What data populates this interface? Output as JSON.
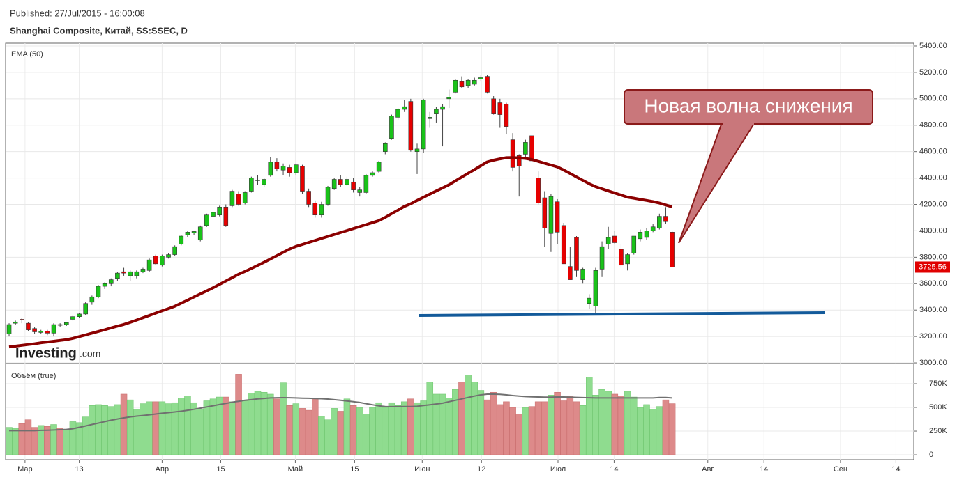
{
  "header": {
    "published": "Published: 27/Jul/2015 - 16:00:08",
    "symbol": "Shanghai Composite, Китай, SS:SSEC, D",
    "logo": [
      "Investing",
      ".com"
    ]
  },
  "chart_data": [
    {
      "type": "candlestick",
      "up_color": "#19c219",
      "down_color": "#e60000",
      "ylim": [
        2995,
        5421
      ],
      "yticks": [
        {
          "value": 3000,
          "label": "3000.00"
        },
        {
          "value": 3200,
          "label": "3200.00"
        },
        {
          "value": 3400,
          "label": "3400.00"
        },
        {
          "value": 3600,
          "label": "3600.00"
        },
        {
          "value": 3800,
          "label": "3800.00"
        },
        {
          "value": 4000,
          "label": "4000.00"
        },
        {
          "value": 4200,
          "label": "4200.00"
        },
        {
          "value": 4400,
          "label": "4400.00"
        },
        {
          "value": 4600,
          "label": "4600.00"
        },
        {
          "value": 4800,
          "label": "4800.00"
        },
        {
          "value": 5000,
          "label": "5000.00"
        },
        {
          "value": 5200,
          "label": "5200.00"
        },
        {
          "value": 5400,
          "label": "5400.00"
        }
      ],
      "grid": true,
      "last_price": 3725.56,
      "annotation": "Новая волна снижения",
      "open": [
        3220,
        3300,
        3330,
        3300,
        3260,
        3230,
        3240,
        3225,
        3290,
        3290,
        3330,
        3350,
        3370,
        3460,
        3500,
        3580,
        3600,
        3640,
        3690,
        3660,
        3660,
        3690,
        3700,
        3810,
        3740,
        3800,
        3820,
        3900,
        3970,
        3985,
        3930,
        4040,
        4110,
        4120,
        4180,
        4190,
        4280,
        4210,
        4300,
        4380,
        4350,
        4420,
        4520,
        4460,
        4480,
        4440,
        4490,
        4300,
        4210,
        4120,
        4200,
        4320,
        4390,
        4350,
        4370,
        4290,
        4290,
        4420,
        4450,
        4600,
        4700,
        4860,
        4920,
        4980,
        4600,
        4620,
        4850,
        4890,
        4920,
        5000,
        5050,
        5130,
        5100,
        5110,
        5150,
        5170,
        5000,
        4970,
        4960,
        4690,
        4570,
        4580,
        4720,
        4400,
        4250,
        3980,
        4220,
        4040,
        3730,
        3950,
        3630,
        3450,
        3430,
        3710,
        3900,
        3960,
        3860,
        3750,
        3830,
        3940,
        3950,
        4000,
        4020,
        4110,
        3990
      ],
      "high": [
        3300,
        3320,
        3340,
        3310,
        3270,
        3250,
        3250,
        3300,
        3300,
        3310,
        3360,
        3380,
        3460,
        3510,
        3590,
        3610,
        3640,
        3690,
        3720,
        3700,
        3700,
        3720,
        3790,
        3820,
        3820,
        3830,
        3890,
        3970,
        4000,
        4000,
        4040,
        4130,
        4150,
        4190,
        4200,
        4310,
        4300,
        4300,
        4410,
        4420,
        4400,
        4560,
        4550,
        4510,
        4500,
        4510,
        4500,
        4320,
        4230,
        4220,
        4340,
        4400,
        4420,
        4410,
        4400,
        4330,
        4430,
        4450,
        4530,
        4670,
        4880,
        4930,
        4990,
        5000,
        4660,
        5000,
        4900,
        4940,
        4960,
        5070,
        5150,
        5170,
        5150,
        5160,
        5178,
        5180,
        5020,
        5000,
        4970,
        4740,
        4580,
        4690,
        4730,
        4450,
        4300,
        4280,
        4240,
        4060,
        3880,
        3960,
        3720,
        3520,
        3720,
        3920,
        4030,
        4000,
        3900,
        3830,
        3960,
        4010,
        4020,
        4050,
        4130,
        4180,
        4000
      ],
      "low": [
        3200,
        3290,
        3300,
        3240,
        3220,
        3220,
        3210,
        3200,
        3270,
        3280,
        3320,
        3340,
        3360,
        3440,
        3490,
        3560,
        3580,
        3620,
        3660,
        3620,
        3640,
        3680,
        3690,
        3740,
        3730,
        3790,
        3810,
        3890,
        3950,
        3970,
        3920,
        4030,
        4100,
        4110,
        4030,
        4180,
        4190,
        4200,
        4290,
        4350,
        4330,
        4410,
        4450,
        4420,
        4410,
        4420,
        4280,
        4180,
        4100,
        4100,
        4190,
        4310,
        4330,
        4340,
        4290,
        4260,
        4280,
        4410,
        4440,
        4580,
        4690,
        4840,
        4900,
        4600,
        4430,
        4590,
        4780,
        4820,
        4640,
        4930,
        5040,
        5080,
        5080,
        5100,
        5130,
        5040,
        4880,
        4780,
        4730,
        4450,
        4260,
        4560,
        4500,
        4200,
        3880,
        3840,
        3900,
        3750,
        3630,
        3650,
        3600,
        3410,
        3370,
        3650,
        3860,
        3900,
        3720,
        3700,
        3820,
        3920,
        3930,
        3990,
        4010,
        4050,
        3725
      ],
      "close": [
        3290,
        3310,
        3325,
        3250,
        3235,
        3240,
        3225,
        3290,
        3285,
        3305,
        3350,
        3370,
        3450,
        3500,
        3580,
        3600,
        3630,
        3680,
        3680,
        3690,
        3690,
        3710,
        3780,
        3750,
        3810,
        3820,
        3880,
        3960,
        3990,
        3995,
        4030,
        4120,
        4140,
        4180,
        4040,
        4300,
        4200,
        4290,
        4400,
        4385,
        4390,
        4520,
        4470,
        4490,
        4440,
        4500,
        4300,
        4200,
        4120,
        4200,
        4330,
        4390,
        4350,
        4390,
        4310,
        4310,
        4420,
        4440,
        4520,
        4660,
        4870,
        4920,
        4940,
        4610,
        4620,
        4990,
        4860,
        4920,
        4940,
        5010,
        5140,
        5090,
        5140,
        5140,
        5160,
        5050,
        4890,
        4880,
        4790,
        4480,
        4490,
        4670,
        4530,
        4210,
        4020,
        4260,
        3990,
        3750,
        3630,
        3700,
        3710,
        3490,
        3700,
        3880,
        3950,
        3910,
        3740,
        3820,
        3960,
        3990,
        4000,
        4030,
        4110,
        4070,
        3725.56
      ],
      "series": [
        {
          "name": "EMA (50)",
          "color": "#8b0000",
          "values": [
            3121,
            3127,
            3133,
            3139,
            3145,
            3152,
            3158,
            3164,
            3170,
            3176,
            3186,
            3199,
            3212,
            3225,
            3238,
            3251,
            3265,
            3278,
            3291,
            3307,
            3324,
            3342,
            3359,
            3377,
            3394,
            3411,
            3429,
            3452,
            3475,
            3499,
            3522,
            3545,
            3569,
            3594,
            3620,
            3645,
            3671,
            3692,
            3715,
            3738,
            3762,
            3787,
            3812,
            3837,
            3862,
            3882,
            3897,
            3912,
            3927,
            3942,
            3957,
            3972,
            3987,
            4002,
            4017,
            4032,
            4047,
            4062,
            4077,
            4102,
            4130,
            4157,
            4185,
            4205,
            4230,
            4254,
            4278,
            4302,
            4325,
            4349,
            4378,
            4407,
            4436,
            4464,
            4493,
            4522,
            4535,
            4545,
            4554,
            4555,
            4552,
            4548,
            4540,
            4526,
            4512,
            4498,
            4484,
            4460,
            4434,
            4408,
            4382,
            4356,
            4334,
            4318,
            4302,
            4286,
            4271,
            4255,
            4247,
            4238,
            4230,
            4221,
            4210,
            4196,
            4182
          ]
        }
      ]
    },
    {
      "type": "bar",
      "title": "Объём (true)",
      "up_color": "#8fdc8f",
      "down_color": "#dd8a8a",
      "ma_color": "#707070",
      "ylim": [
        -51000,
        963000
      ],
      "yticks": [
        0,
        {
          "value": 250000,
          "label": "250K"
        },
        {
          "value": 500000,
          "label": "500K"
        },
        {
          "value": 750000,
          "label": "750K"
        }
      ],
      "xlim": [
        -0.55,
        141.9
      ],
      "xticks": [
        {
          "value": 2.5,
          "label": "Мар"
        },
        {
          "value": 11,
          "label": "13"
        },
        {
          "value": 24,
          "label": "Апр"
        },
        {
          "value": 33.2,
          "label": "15"
        },
        {
          "value": 44.9,
          "label": "Май"
        },
        {
          "value": 54.2,
          "label": "15"
        },
        {
          "value": 64.8,
          "label": "Июн"
        },
        {
          "value": 74.1,
          "label": "12"
        },
        {
          "value": 86.1,
          "label": "Июл"
        },
        {
          "value": 94.9,
          "label": "14"
        },
        {
          "value": 109.6,
          "label": "Авг"
        },
        {
          "value": 118.4,
          "label": "14"
        },
        {
          "value": 130.4,
          "label": "Сен"
        },
        {
          "value": 139.1,
          "label": "14"
        }
      ],
      "values": [
        290000,
        280000,
        330000,
        370000,
        290000,
        310000,
        300000,
        320000,
        280000,
        260000,
        350000,
        340000,
        400000,
        520000,
        530000,
        520000,
        510000,
        530000,
        640000,
        580000,
        480000,
        540000,
        560000,
        560000,
        560000,
        540000,
        550000,
        600000,
        620000,
        550000,
        480000,
        570000,
        590000,
        610000,
        610000,
        560000,
        850000,
        570000,
        650000,
        670000,
        660000,
        640000,
        590000,
        760000,
        520000,
        540000,
        490000,
        470000,
        590000,
        410000,
        370000,
        490000,
        460000,
        590000,
        520000,
        500000,
        430000,
        500000,
        550000,
        500000,
        550000,
        520000,
        560000,
        590000,
        550000,
        570000,
        770000,
        640000,
        640000,
        600000,
        690000,
        770000,
        840000,
        770000,
        680000,
        580000,
        660000,
        530000,
        560000,
        500000,
        430000,
        500000,
        510000,
        560000,
        560000,
        630000,
        660000,
        570000,
        620000,
        560000,
        520000,
        820000,
        630000,
        690000,
        670000,
        640000,
        620000,
        670000,
        610000,
        500000,
        530000,
        480000,
        510000,
        580000,
        540000
      ],
      "ma_values": [
        255000,
        255000,
        255000,
        255000,
        255000,
        258000,
        260000,
        262000,
        265000,
        268000,
        275000,
        290000,
        305000,
        320000,
        335000,
        350000,
        365000,
        378000,
        390000,
        400000,
        408000,
        415000,
        422000,
        430000,
        438000,
        445000,
        452000,
        460000,
        470000,
        480000,
        492000,
        505000,
        518000,
        530000,
        542000,
        555000,
        565000,
        575000,
        582000,
        590000,
        595000,
        600000,
        602000,
        603000,
        602000,
        600000,
        598000,
        596000,
        594000,
        592000,
        588000,
        582000,
        575000,
        568000,
        560000,
        552000,
        540000,
        528000,
        516000,
        510000,
        508000,
        508000,
        509000,
        510000,
        512000,
        520000,
        528000,
        536000,
        545000,
        560000,
        575000,
        590000,
        605000,
        620000,
        632000,
        640000,
        640000,
        638000,
        632000,
        625000,
        620000,
        615000,
        612000,
        610000,
        608000,
        608000,
        610000,
        610000,
        608000,
        606000,
        604000,
        602000,
        600000,
        600000,
        600000,
        600000,
        600000,
        600000,
        600000,
        600000,
        600000,
        600000,
        605000,
        605000,
        600000
      ]
    }
  ]
}
